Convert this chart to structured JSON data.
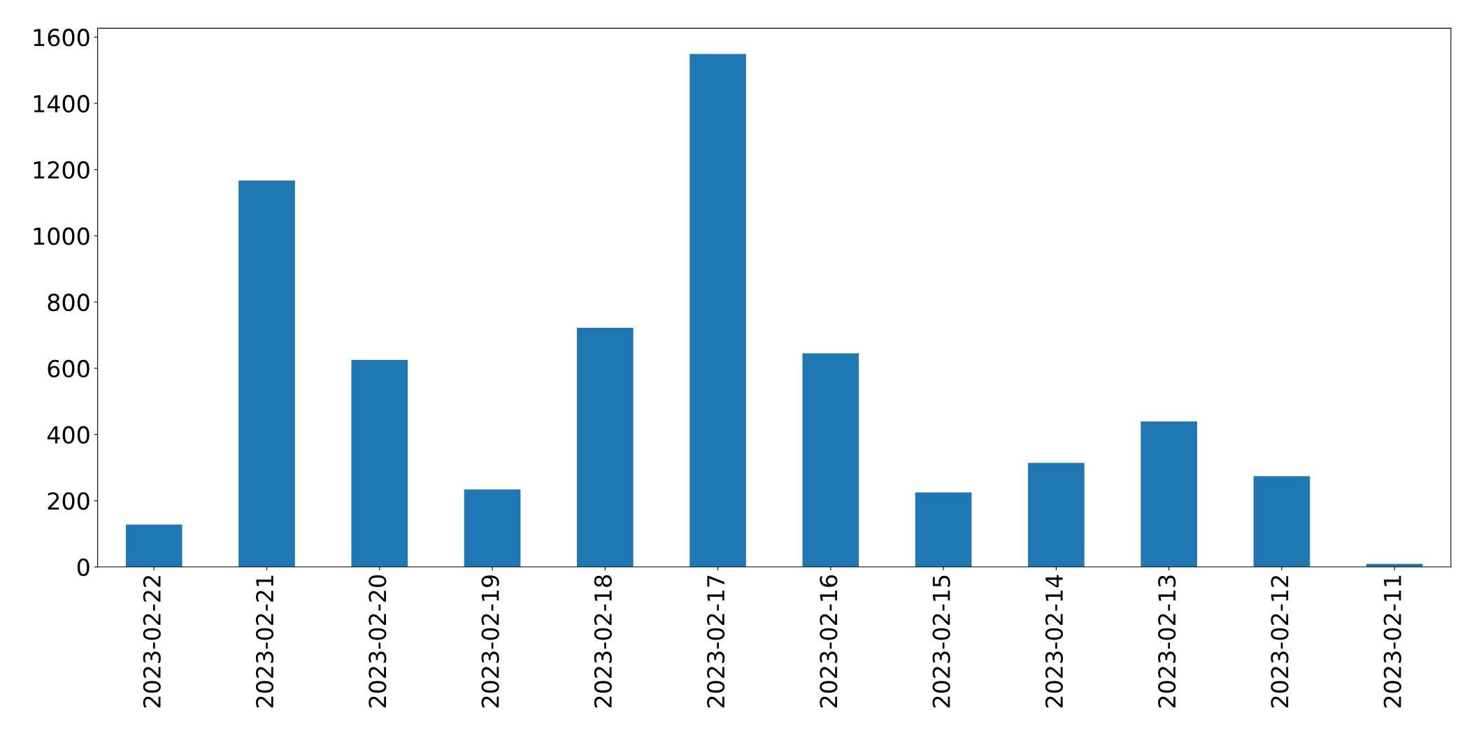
{
  "chart_data": {
    "type": "bar",
    "categories": [
      "2023-02-22",
      "2023-02-21",
      "2023-02-20",
      "2023-02-19",
      "2023-02-18",
      "2023-02-17",
      "2023-02-16",
      "2023-02-15",
      "2023-02-14",
      "2023-02-13",
      "2023-02-12",
      "2023-02-11"
    ],
    "values": [
      128,
      1167,
      625,
      234,
      722,
      1549,
      645,
      225,
      314,
      439,
      274,
      9
    ],
    "color": "#1f77b4",
    "ylim": [
      0,
      1627
    ],
    "yticks": [
      0,
      200,
      400,
      600,
      800,
      1000,
      1200,
      1400,
      1600
    ],
    "grid": false
  }
}
